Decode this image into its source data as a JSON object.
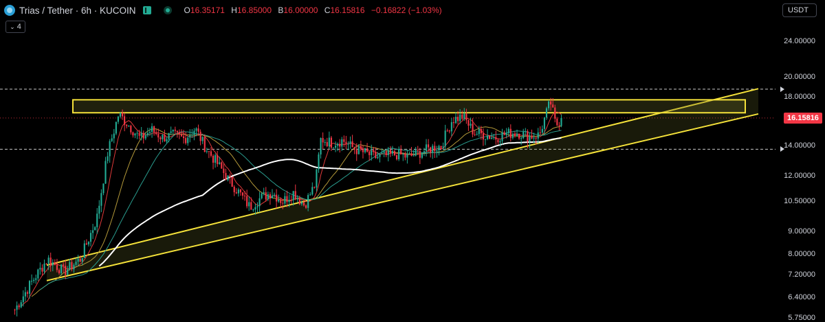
{
  "header": {
    "title": "Trias / Tether · 6h · KUCOIN",
    "ohlc": [
      {
        "key": "O",
        "value": "16.35171"
      },
      {
        "key": "H",
        "value": "16.85000"
      },
      {
        "key": "B",
        "value": "16.00000"
      },
      {
        "key": "C",
        "value": "16.15816"
      }
    ],
    "change": "−0.16822 (−1.03%)",
    "indicator_count": "4"
  },
  "currency": "USDT",
  "colors": {
    "background": "#000000",
    "up": "#22ab94",
    "down": "#f23645",
    "zone": "#f5e23a",
    "ma_white": "#ffffff",
    "ma_red": "#e03a3a",
    "ma_yellow": "#b59a3a",
    "ma_teal": "#2a9d8f"
  },
  "chart_data": {
    "type": "candlestick",
    "symbol": "Trias / Tether",
    "interval": "6h",
    "exchange": "KUCOIN",
    "y_scale": "log",
    "ylim": [
      5.75,
      27.5
    ],
    "y_ticks": [
      "24.00000",
      "20.00000",
      "18.00000",
      "14.00000",
      "12.00000",
      "10.50000",
      "9.00000",
      "8.00000",
      "7.20000",
      "6.40000",
      "5.75000"
    ],
    "last_price": "16.15816",
    "dashed_levels": [
      18.75,
      13.75
    ],
    "resistance_zone": {
      "lower": 16.6,
      "upper": 17.75
    },
    "ascending_channel": {
      "upper": [
        [
          0.0,
          7.55
        ],
        [
          1.0,
          18.8
        ]
      ],
      "lower": [
        [
          0.0,
          6.97
        ],
        [
          1.0,
          16.5
        ]
      ]
    },
    "price_path": [
      [
        0.0,
        6.0
      ],
      [
        0.03,
        6.9
      ],
      [
        0.06,
        7.8
      ],
      [
        0.09,
        7.3
      ],
      [
        0.12,
        7.8
      ],
      [
        0.15,
        9.6
      ],
      [
        0.17,
        13.5
      ],
      [
        0.19,
        16.5
      ],
      [
        0.21,
        15.5
      ],
      [
        0.23,
        14.5
      ],
      [
        0.25,
        15.2
      ],
      [
        0.27,
        14.6
      ],
      [
        0.29,
        14.8
      ],
      [
        0.31,
        14.5
      ],
      [
        0.33,
        15.3
      ],
      [
        0.35,
        13.8
      ],
      [
        0.37,
        12.8
      ],
      [
        0.39,
        11.8
      ],
      [
        0.41,
        11.0
      ],
      [
        0.43,
        10.2
      ],
      [
        0.45,
        10.7
      ],
      [
        0.47,
        11.0
      ],
      [
        0.49,
        10.5
      ],
      [
        0.51,
        11.0
      ],
      [
        0.53,
        10.3
      ],
      [
        0.55,
        11.5
      ],
      [
        0.56,
        14.5
      ],
      [
        0.58,
        14.2
      ],
      [
        0.6,
        14.4
      ],
      [
        0.62,
        13.8
      ],
      [
        0.64,
        13.5
      ],
      [
        0.66,
        13.2
      ],
      [
        0.68,
        13.3
      ],
      [
        0.7,
        13.4
      ],
      [
        0.72,
        13.2
      ],
      [
        0.74,
        13.5
      ],
      [
        0.76,
        13.8
      ],
      [
        0.78,
        14.0
      ],
      [
        0.8,
        16.0
      ],
      [
        0.82,
        16.3
      ],
      [
        0.84,
        15.0
      ],
      [
        0.86,
        14.8
      ],
      [
        0.88,
        14.6
      ],
      [
        0.9,
        14.9
      ],
      [
        0.92,
        15.0
      ],
      [
        0.94,
        14.7
      ],
      [
        0.96,
        14.8
      ],
      [
        0.97,
        16.2
      ],
      [
        0.98,
        17.6
      ],
      [
        0.99,
        15.5
      ],
      [
        1.0,
        16.16
      ]
    ]
  }
}
